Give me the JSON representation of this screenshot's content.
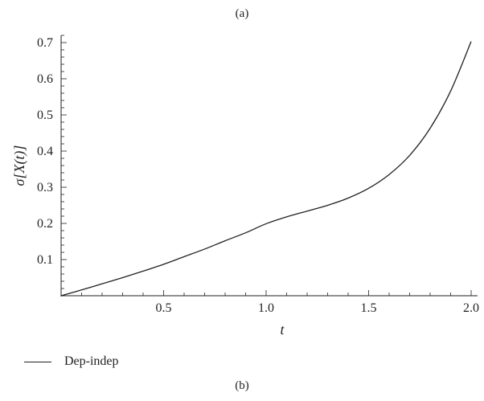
{
  "panel_top_label": "(a)",
  "panel_bottom_label": "(b)",
  "chart_data": {
    "type": "line",
    "title": "",
    "xlabel": "t",
    "ylabel": "σ[X(t)]",
    "xlim": [
      0,
      2.0
    ],
    "ylim": [
      0,
      0.72
    ],
    "x_ticks": [
      "0.5",
      "1.0",
      "1.5",
      "2.0"
    ],
    "x_tick_values": [
      0.5,
      1.0,
      1.5,
      2.0
    ],
    "y_ticks": [
      "0.1",
      "0.2",
      "0.3",
      "0.4",
      "0.5",
      "0.6",
      "0.7"
    ],
    "y_tick_values": [
      0.1,
      0.2,
      0.3,
      0.4,
      0.5,
      0.6,
      0.7
    ],
    "grid": false,
    "legend_position": "bottom-left",
    "series": [
      {
        "name": "Dep-indep",
        "color": "#231f20",
        "x": [
          0,
          0.1,
          0.2,
          0.3,
          0.4,
          0.5,
          0.6,
          0.7,
          0.8,
          0.9,
          1.0,
          1.1,
          1.2,
          1.3,
          1.4,
          1.5,
          1.6,
          1.7,
          1.8,
          1.9,
          2.0
        ],
        "y": [
          0,
          0.016,
          0.033,
          0.05,
          0.068,
          0.087,
          0.108,
          0.129,
          0.152,
          0.174,
          0.199,
          0.218,
          0.234,
          0.25,
          0.27,
          0.297,
          0.335,
          0.388,
          0.463,
          0.566,
          0.703
        ]
      }
    ]
  }
}
